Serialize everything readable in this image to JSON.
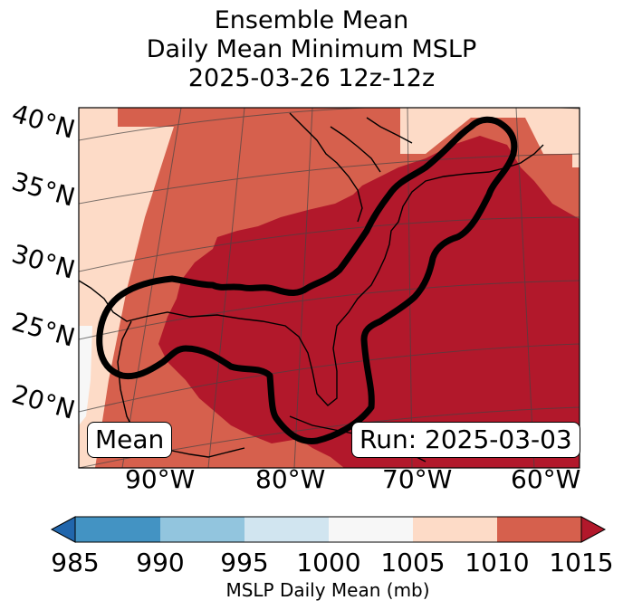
{
  "title": {
    "line1": "Ensemble Mean",
    "line2": "Daily Mean Minimum MSLP",
    "line3": "2025-03-26 12z-12z"
  },
  "map": {
    "lat_labels": [
      "40°N",
      "35°N",
      "30°N",
      "25°N",
      "20°N"
    ],
    "lon_labels": [
      "90°W",
      "80°W",
      "70°W",
      "60°W"
    ],
    "contour_color": "#000000"
  },
  "annotations": {
    "left_box": "Mean",
    "right_box": "Run: 2025-03-03"
  },
  "colorbar": {
    "label": "MSLP Daily Mean (mb)",
    "ticks": [
      "985",
      "990",
      "995",
      "1000",
      "1005",
      "1010",
      "1015"
    ],
    "colors": {
      "below_985": "#2166ac",
      "985_990": "#4393c3",
      "990_995": "#92c5de",
      "995_1000": "#d1e5f0",
      "1000_1005": "#f7f7f7",
      "1005_1010": "#fddbc7",
      "1010_1015": "#d6604d",
      "above_1015": "#b2182b"
    }
  }
}
